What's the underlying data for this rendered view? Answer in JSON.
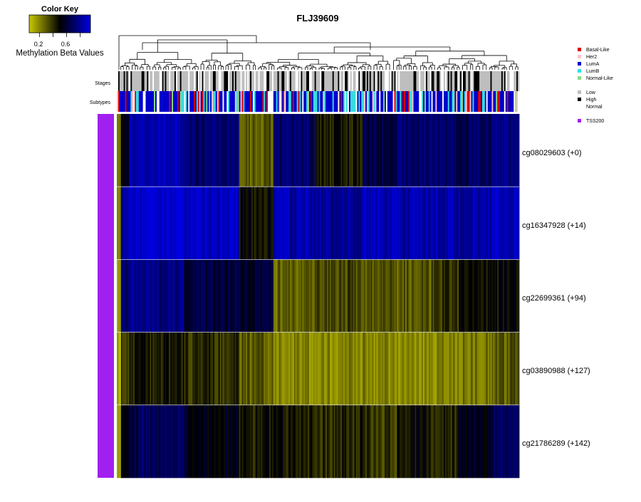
{
  "chart_data": {
    "type": "heatmap",
    "title": "FLJ39609",
    "color_key": {
      "title": "Color Key",
      "label": "Methylation Beta Values",
      "ticks": [
        "0.2",
        "0.6"
      ],
      "range": [
        0.05,
        0.95
      ],
      "colors": [
        "#c8c800",
        "#000000",
        "#0000dd"
      ]
    },
    "annotation_rows": [
      "Stages",
      "Subtypes"
    ],
    "legend": {
      "subtypes": [
        {
          "label": "Basal-Like",
          "color": "#dd0000"
        },
        {
          "label": "Her2",
          "color": "#ffc0cb"
        },
        {
          "label": "LumA",
          "color": "#0000cc"
        },
        {
          "label": "LumB",
          "color": "#33dddd"
        },
        {
          "label": "Normal-Like",
          "color": "#88dd88"
        }
      ],
      "stages": [
        {
          "label": "Low",
          "color": "#bebebe"
        },
        {
          "label": "High",
          "color": "#000000"
        },
        {
          "label": "Normal",
          "color": "#ffffff"
        }
      ],
      "regions": [
        {
          "label": "TSS200",
          "color": "#a020f0"
        }
      ]
    },
    "rows": [
      {
        "probe": "cg08029603 (+0)",
        "region": "TSS200"
      },
      {
        "probe": "cg16347928 (+14)",
        "region": "TSS200"
      },
      {
        "probe": "cg22699361 (+94)",
        "region": "TSS200"
      },
      {
        "probe": "cg03890988 (+127)",
        "region": "TSS200"
      },
      {
        "probe": "cg21786289 (+142)",
        "region": "TSS200"
      }
    ],
    "column_blocks": [
      {
        "n": 3,
        "values": [
          0.2,
          0.25,
          0.1,
          0.08,
          0.1
        ]
      },
      {
        "n": 6,
        "values": [
          0.55,
          0.8,
          0.7,
          0.35,
          0.55
        ]
      },
      {
        "n": 40,
        "values": [
          0.85,
          0.92,
          0.78,
          0.45,
          0.68
        ]
      },
      {
        "n": 40,
        "values": [
          0.72,
          0.9,
          0.62,
          0.4,
          0.55
        ]
      },
      {
        "n": 25,
        "values": [
          0.3,
          0.48,
          0.6,
          0.3,
          0.45
        ]
      },
      {
        "n": 30,
        "values": [
          0.7,
          0.85,
          0.28,
          0.2,
          0.45
        ]
      },
      {
        "n": 35,
        "values": [
          0.45,
          0.8,
          0.35,
          0.22,
          0.42
        ]
      },
      {
        "n": 25,
        "values": [
          0.62,
          0.86,
          0.32,
          0.2,
          0.38
        ]
      },
      {
        "n": 25,
        "values": [
          0.72,
          0.85,
          0.3,
          0.18,
          0.48
        ]
      },
      {
        "n": 20,
        "values": [
          0.7,
          0.86,
          0.38,
          0.22,
          0.42
        ]
      },
      {
        "n": 24,
        "values": [
          0.68,
          0.85,
          0.45,
          0.25,
          0.55
        ]
      },
      {
        "n": 20,
        "values": [
          0.75,
          0.88,
          0.48,
          0.3,
          0.68
        ]
      }
    ]
  }
}
